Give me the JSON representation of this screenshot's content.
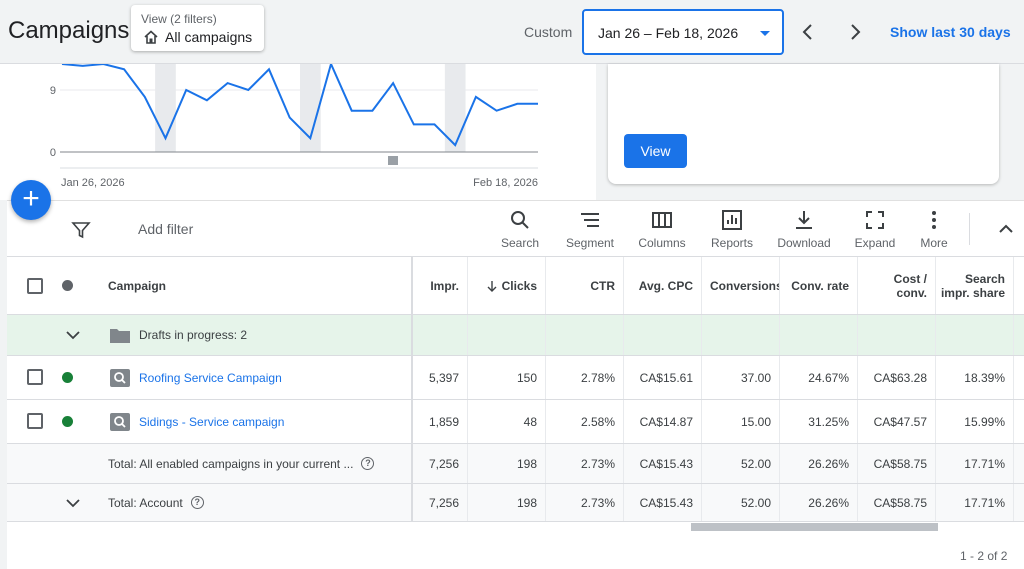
{
  "header": {
    "title": "Campaigns",
    "view_sub": "View (2 filters)",
    "view_main": "All campaigns",
    "custom_label": "Custom",
    "date_range": "Jan 26 – Feb 18, 2026",
    "show_last": "Show last 30 days"
  },
  "chart": {
    "y_ticks": [
      "9",
      "0"
    ],
    "x_start": "Jan 26, 2026",
    "x_end": "Feb 18, 2026",
    "series_color": "#1a73e8"
  },
  "chart_data": {
    "type": "line",
    "x": [
      "Jan 26",
      "Jan 27",
      "Jan 28",
      "Jan 29",
      "Jan 30",
      "Jan 31",
      "Feb 1",
      "Feb 2",
      "Feb 3",
      "Feb 4",
      "Feb 5",
      "Feb 6",
      "Feb 7",
      "Feb 8",
      "Feb 9",
      "Feb 10",
      "Feb 11",
      "Feb 12",
      "Feb 13",
      "Feb 14",
      "Feb 15",
      "Feb 16",
      "Feb 17",
      "Feb 18"
    ],
    "series": [
      {
        "values": [
          13,
          12.5,
          14,
          12,
          8,
          2,
          9,
          7.5,
          10,
          9,
          12,
          5,
          2,
          13,
          6,
          6,
          10,
          4,
          4,
          1,
          8,
          6,
          7,
          7
        ]
      }
    ],
    "ylim": [
      0,
      13
    ],
    "y_ticks": [
      0,
      9
    ],
    "grid": true
  },
  "side_card": {
    "view_label": "View"
  },
  "toolbar": {
    "add_filter": "Add filter",
    "tools": [
      {
        "label": "Search",
        "icon": "search-icon"
      },
      {
        "label": "Segment",
        "icon": "segment-icon"
      },
      {
        "label": "Columns",
        "icon": "columns-icon"
      },
      {
        "label": "Reports",
        "icon": "reports-icon"
      },
      {
        "label": "Download",
        "icon": "download-icon"
      },
      {
        "label": "Expand",
        "icon": "expand-icon"
      },
      {
        "label": "More",
        "icon": "more-icon"
      }
    ]
  },
  "table": {
    "headers": {
      "campaign": "Campaign",
      "impr": "Impr.",
      "clicks": "Clicks",
      "ctr": "CTR",
      "avg_cpc": "Avg. CPC",
      "conversions": "Conversions",
      "conv_rate": "Conv. rate",
      "cost_conv_1": "Cost /",
      "cost_conv_2": "conv.",
      "search_share_1": "Search",
      "search_share_2": "impr. share"
    },
    "drafts_label": "Drafts in progress: 2",
    "rows": [
      {
        "name": "Roofing Service Campaign",
        "impr": "5,397",
        "clicks": "150",
        "ctr": "2.78%",
        "avg_cpc": "CA$15.61",
        "conversions": "37.00",
        "conv_rate": "24.67%",
        "cost_conv": "CA$63.28",
        "search_share": "18.39%",
        "status_color": "#188038"
      },
      {
        "name": "Sidings - Service campaign",
        "impr": "1,859",
        "clicks": "48",
        "ctr": "2.58%",
        "avg_cpc": "CA$14.87",
        "conversions": "15.00",
        "conv_rate": "31.25%",
        "cost_conv": "CA$47.57",
        "search_share": "15.99%",
        "status_color": "#188038"
      }
    ],
    "total_enabled": {
      "name": "Total: All enabled campaigns in your current ...",
      "impr": "7,256",
      "clicks": "198",
      "ctr": "2.73%",
      "avg_cpc": "CA$15.43",
      "conversions": "52.00",
      "conv_rate": "26.26%",
      "cost_conv": "CA$58.75",
      "search_share": "17.71%"
    },
    "total_account": {
      "name": "Total: Account",
      "impr": "7,256",
      "clicks": "198",
      "ctr": "2.73%",
      "avg_cpc": "CA$15.43",
      "conversions": "52.00",
      "conv_rate": "26.26%",
      "cost_conv": "CA$58.75",
      "search_share": "17.71%"
    }
  },
  "pager": "1 - 2 of 2"
}
